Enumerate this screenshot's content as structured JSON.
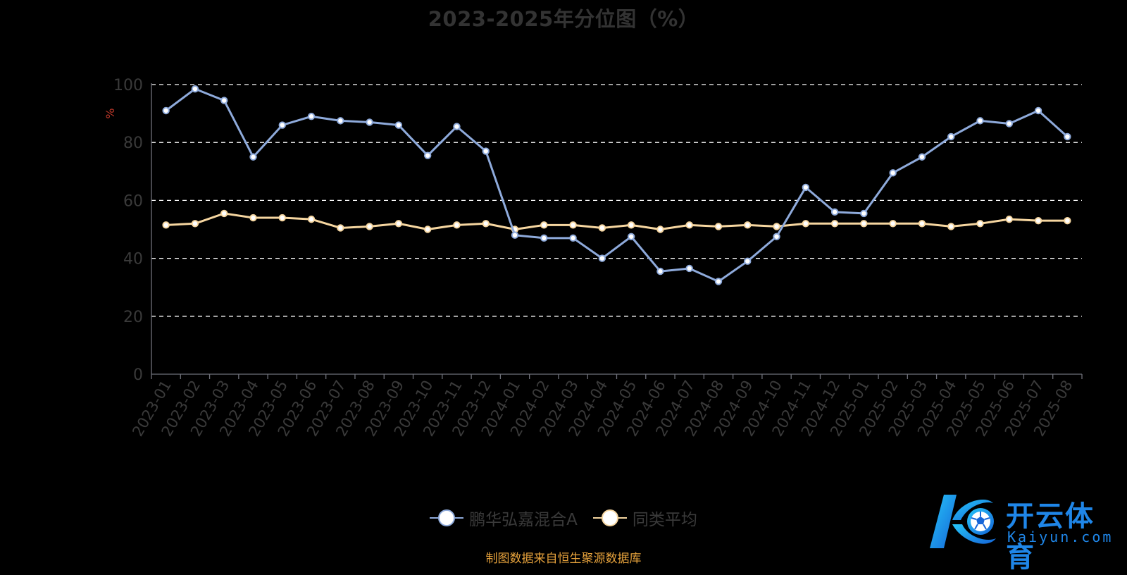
{
  "chart_data": {
    "type": "line",
    "title": "2023-2025年分位图（%）",
    "ylabel": "%",
    "ylim": [
      0,
      100
    ],
    "yticks": [
      "0",
      "20",
      "40",
      "60",
      "80",
      "100"
    ],
    "grid": true,
    "legend_position": "bottom",
    "categories": [
      "2023-01",
      "2023-02",
      "2023-03",
      "2023-04",
      "2023-05",
      "2023-06",
      "2023-07",
      "2023-08",
      "2023-09",
      "2023-10",
      "2023-11",
      "2023-12",
      "2024-01",
      "2024-02",
      "2024-03",
      "2024-04",
      "2024-05",
      "2024-06",
      "2024-07",
      "2024-08",
      "2024-09",
      "2024-10",
      "2024-11",
      "2024-12",
      "2025-01",
      "2025-02",
      "2025-03",
      "2025-04",
      "2025-05",
      "2025-06",
      "2025-07",
      "2025-08"
    ],
    "series": [
      {
        "name": "鹏华弘嘉混合A",
        "color": "#8eaadb",
        "values": [
          91,
          98.5,
          94.5,
          75,
          86,
          89,
          87.5,
          87,
          86,
          75.5,
          85.5,
          77,
          48,
          47,
          47,
          40,
          47.5,
          35.5,
          36.5,
          32,
          39,
          47.5,
          64.5,
          56,
          55.5,
          69.5,
          75,
          82,
          87.5,
          86.5,
          91,
          82
        ]
      },
      {
        "name": "同类平均",
        "color": "#f6d6a0",
        "values": [
          51.5,
          52,
          55.5,
          54,
          54,
          53.5,
          50.5,
          51,
          52,
          50,
          51.5,
          52,
          50,
          51.5,
          51.5,
          50.5,
          51.5,
          50,
          51.5,
          51,
          51.5,
          51,
          52,
          52,
          52,
          52,
          52,
          51,
          52,
          53.5,
          53,
          53
        ]
      }
    ]
  },
  "colors": {
    "background": "#000000",
    "axis_text": "#3a3a3a",
    "ylabel_text": "#c0392b",
    "grid": "#ffffff",
    "source_text": "#e6a23c",
    "watermark": "#1f86e8"
  },
  "footer": {
    "source": "制图数据来自恒生聚源数据库"
  },
  "watermark": {
    "brand": "开云体育",
    "domain": "Kaiyun.com",
    "icon": "soccer-ball-logo-icon"
  }
}
